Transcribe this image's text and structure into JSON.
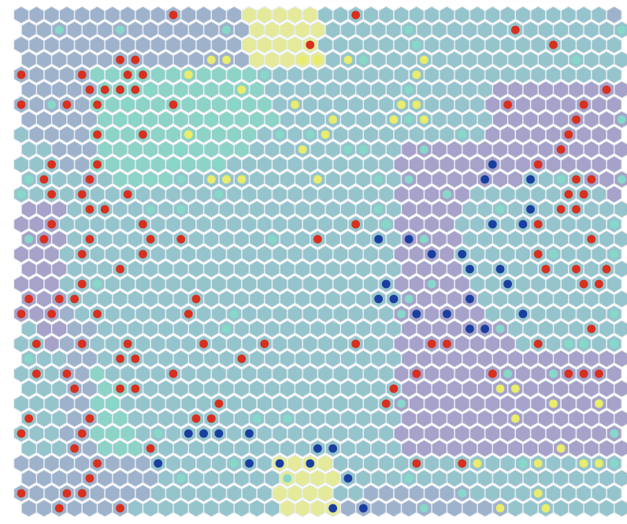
{
  "chart_data": {
    "type": "heatmap",
    "title": "",
    "grid": {
      "cols": 41,
      "rows": 34,
      "shape": "hexagonal"
    },
    "colors": {
      "background_cell": "#9fb2cc",
      "cluster_purple": "#a6a2c9",
      "cluster_teal": "#8dd3c7",
      "highlight_yellow": "#e4ea9a",
      "mixed_teal_blue": "#95c4cc",
      "marker_red": "#d7301f",
      "marker_blue": "#1a3fa0",
      "marker_yellow": "#e9ec6c",
      "marker_teal": "#86d9c9",
      "cell_border": "#e8ecf2"
    },
    "legend": "none"
  }
}
